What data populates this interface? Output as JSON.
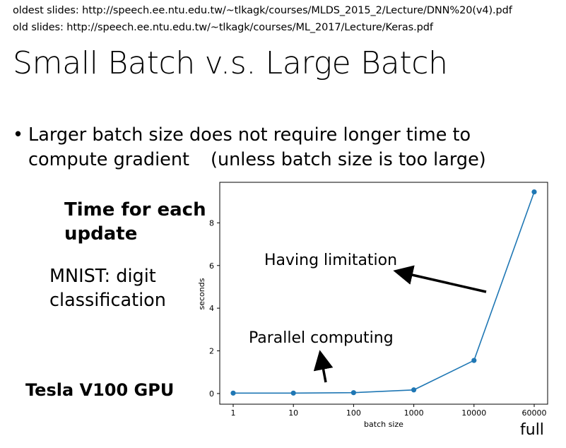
{
  "header": {
    "oldest_slides": "oldest slides: http://speech.ee.ntu.edu.tw/~tlkagk/courses/MLDS_2015_2/Lecture/DNN%20(v4).pdf",
    "old_slides": "old slides: http://speech.ee.ntu.edu.tw/~tlkagk/courses/ML_2017/Lecture/Keras.pdf"
  },
  "slide": {
    "title": "Small Batch v.s. Large Batch",
    "bullet_marker": "•",
    "bullet_line1": "Larger batch size does not require longer time to",
    "bullet_line2a": "compute gradient",
    "bullet_line2b": "(unless batch size is too large)",
    "time_label_line1": "Time for each",
    "time_label_line2": "update",
    "mnist_line1": "MNIST: digit",
    "mnist_line2": "classification",
    "gpu_label": "Tesla V100 GPU",
    "full_label": "full"
  },
  "chart_data": {
    "type": "line",
    "categories": [
      "1",
      "10",
      "100",
      "1000",
      "10000",
      "60000"
    ],
    "series": [
      {
        "values": [
          0.02,
          0.02,
          0.04,
          0.17,
          1.55,
          9.45
        ],
        "color": "#1f77b4"
      }
    ],
    "xlabel": "batch size",
    "ylabel": "seconds",
    "yticks": [
      0,
      2,
      4,
      6,
      8
    ],
    "ylim": [
      -0.5,
      9.9
    ],
    "grid": false,
    "annotations": [
      {
        "text": "Having limitation"
      },
      {
        "text": "Parallel computing"
      }
    ]
  }
}
